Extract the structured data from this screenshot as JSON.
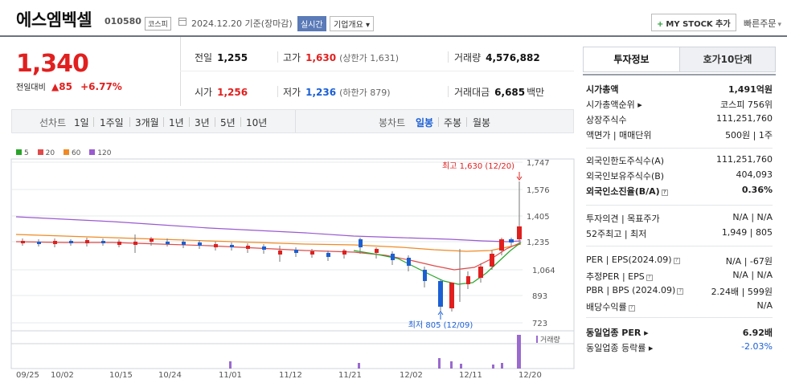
{
  "header": {
    "name": "에스엠벡셀",
    "code": "010580",
    "market": "코스피",
    "date_text": "2024.12.20 기준(장마감)",
    "realtime_label": "실시간",
    "overview_label": "기업개요 ▾",
    "mystock_label": "MY STOCK 추가",
    "quick_order_label": "빠른주문"
  },
  "quote": {
    "price": "1,340",
    "change_label": "전일대비",
    "change_value": "▲85",
    "change_pct": "+6.77%",
    "prev_close_label": "전일",
    "prev_close": "1,255",
    "high_label": "고가",
    "high": "1,630",
    "upper_limit": "(상한가 1,631)",
    "volume_label": "거래량",
    "volume": "4,576,882",
    "open_label": "시가",
    "open": "1,256",
    "low_label": "저가",
    "low": "1,236",
    "lower_limit": "(하한가 879)",
    "amount_label": "거래대금",
    "amount": "6,685",
    "amount_unit": "백만"
  },
  "periods": {
    "line_label": "선차트",
    "line_items": [
      "1일",
      "1주일",
      "3개월",
      "1년",
      "3년",
      "5년",
      "10년"
    ],
    "candle_label": "봉차트",
    "candle_items": [
      "일봉",
      "주봉",
      "월봉"
    ],
    "active": "일봉"
  },
  "legend": [
    "5",
    "20",
    "60",
    "120"
  ],
  "colors": {
    "ma5": "#2aa52a",
    "ma20": "#e04a4a",
    "ma60": "#f08a24",
    "ma120": "#9a5ad0",
    "up": "#e0201f",
    "down": "#1b5fd4"
  },
  "chart_data": {
    "type": "candlestick",
    "y_ticks": [
      "1,747",
      "1,576",
      "1,405",
      "1,235",
      "1,064",
      "893",
      "723"
    ],
    "x_ticks": [
      "09/25",
      "10/02",
      "10/15",
      "10/24",
      "11/01",
      "11/12",
      "11/21",
      "12/02",
      "12/11",
      "12/20"
    ],
    "high_annotation": "최고 1,630 (12/20)",
    "low_annotation": "최저 805 (12/09)",
    "volume_label": "거래량"
  },
  "panel": {
    "tab_invest": "투자정보",
    "tab_orderbook": "호가10단계",
    "rows1": [
      {
        "k": "시가총액",
        "v": "1,491억원",
        "bold": true
      },
      {
        "k": "시가총액순위 ▸",
        "v": "코스피 756위"
      },
      {
        "k": "상장주식수",
        "v": "111,251,760"
      },
      {
        "k": "액면가 | 매매단위",
        "v": "500원 | 1주"
      }
    ],
    "rows2": [
      {
        "k": "외국인한도주식수(A)",
        "v": "111,251,760"
      },
      {
        "k": "외국인보유주식수(B)",
        "v": "404,093"
      },
      {
        "k": "외국인소진율(B/A)",
        "v": "0.36%",
        "bold": true
      }
    ],
    "rows3": [
      {
        "k": "투자의견 | 목표주가",
        "v": "N/A | N/A"
      },
      {
        "k": "52주최고 | 최저",
        "v": "1,949 | 805"
      }
    ],
    "rows4": [
      {
        "k": "PER | EPS(2024.09)",
        "v": "N/A | -67원"
      },
      {
        "k": "추정PER | EPS",
        "v": "N/A | N/A"
      },
      {
        "k": "PBR | BPS (2024.09)",
        "v": "2.24배 | 599원"
      },
      {
        "k": "배당수익률",
        "v": "N/A"
      }
    ],
    "rows5": [
      {
        "k": "동일업종 PER ▸",
        "v": "6.92배",
        "bold": true
      },
      {
        "k": "동일업종 등락률 ▸",
        "v": "-2.03%",
        "neg": true
      }
    ]
  }
}
